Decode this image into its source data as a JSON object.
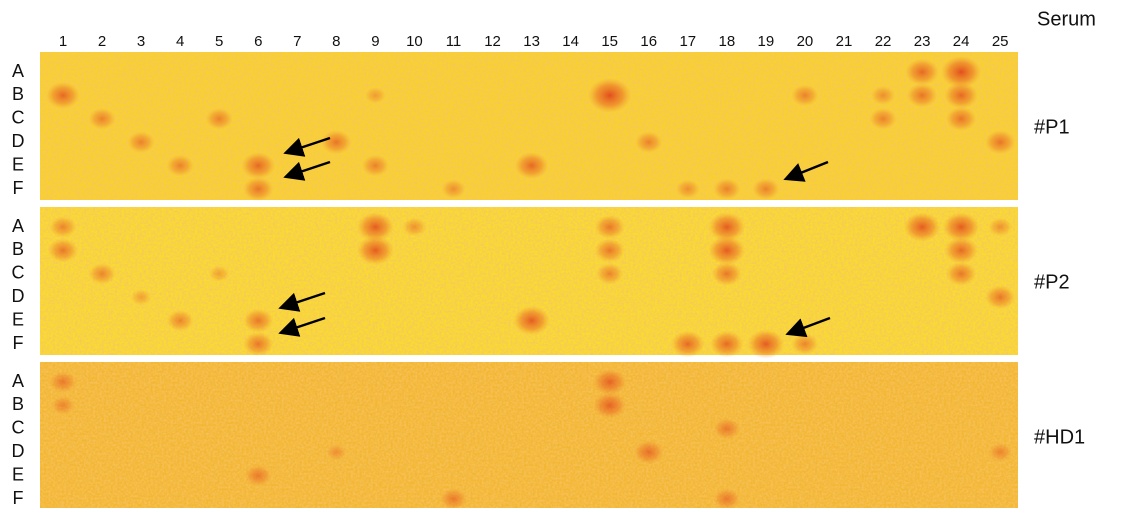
{
  "serum_label": "Serum",
  "columns": [
    "1",
    "2",
    "3",
    "4",
    "5",
    "6",
    "7",
    "8",
    "9",
    "10",
    "11",
    "12",
    "13",
    "14",
    "15",
    "16",
    "17",
    "18",
    "19",
    "20",
    "21",
    "22",
    "23",
    "24",
    "25"
  ],
  "panels": [
    {
      "label": "#P1",
      "rows": [
        "A",
        "B",
        "C",
        "D",
        "E",
        "F"
      ]
    },
    {
      "label": "#P2",
      "rows": [
        "A",
        "B",
        "C",
        "D",
        "E",
        "F"
      ]
    },
    {
      "label": "#HD1",
      "rows": [
        "A",
        "B",
        "C",
        "D",
        "E",
        "F"
      ]
    }
  ]
}
